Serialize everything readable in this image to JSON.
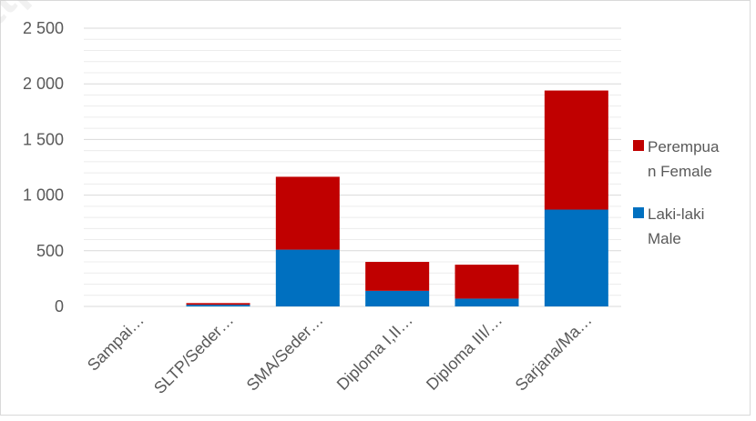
{
  "chart_data": {
    "type": "bar",
    "stacked": true,
    "categories": [
      "Sampai…",
      "SLTP/Seder…",
      "SMA/Seder…",
      "Diploma I,II…",
      "Diploma III/…",
      "Sarjana/Ma…"
    ],
    "series": [
      {
        "name": "Laki-laki Male",
        "color": "#0070c0",
        "values": [
          0,
          15,
          510,
          140,
          70,
          870
        ]
      },
      {
        "name": "Perempuan Female",
        "color": "#c00000",
        "values": [
          0,
          15,
          655,
          260,
          305,
          1070
        ]
      }
    ],
    "y_ticks": [
      "0",
      "500",
      "1 000",
      "1 500",
      "2 000",
      "2 500"
    ],
    "ylim": [
      0,
      2500
    ],
    "grid": true,
    "legend_position": "right",
    "legend": [
      {
        "lines": [
          "Perempua",
          "n Female"
        ],
        "color": "#c00000"
      },
      {
        "lines": [
          "Laki-laki",
          "Male"
        ],
        "color": "#0070c0"
      }
    ],
    "watermark": "https://halbar"
  }
}
